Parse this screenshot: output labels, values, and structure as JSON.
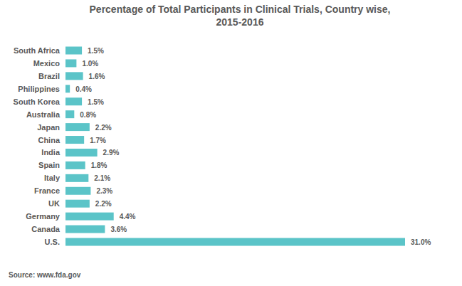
{
  "chart_data": {
    "type": "bar",
    "orientation": "horizontal",
    "title": "Percentage of Total Participants in Clinical Trials, Country wise, 2015-2016",
    "categories": [
      "South Africa",
      "Mexico",
      "Brazil",
      "Philippines",
      "South Korea",
      "Australia",
      "Japan",
      "China",
      "India",
      "Spain",
      "Italy",
      "France",
      "UK",
      "Germany",
      "Canada",
      "U.S."
    ],
    "values": [
      1.5,
      1.0,
      1.6,
      0.4,
      1.5,
      0.8,
      2.2,
      1.7,
      2.9,
      1.8,
      2.1,
      2.3,
      2.2,
      4.4,
      3.6,
      31.0
    ],
    "value_labels": [
      "1.5%",
      "1.0%",
      "1.6%",
      "0.4%",
      "1.5%",
      "0.8%",
      "2.2%",
      "1.7%",
      "2.9%",
      "1.8%",
      "2.1%",
      "2.3%",
      "2.2%",
      "4.4%",
      "3.6%",
      "31.0%"
    ],
    "data_labels": true,
    "color": "#5BC4C8",
    "xlim": [
      0,
      31
    ],
    "tick_labels": false,
    "grid": false,
    "annotations": [
      "Source: www.fda.gov"
    ]
  }
}
